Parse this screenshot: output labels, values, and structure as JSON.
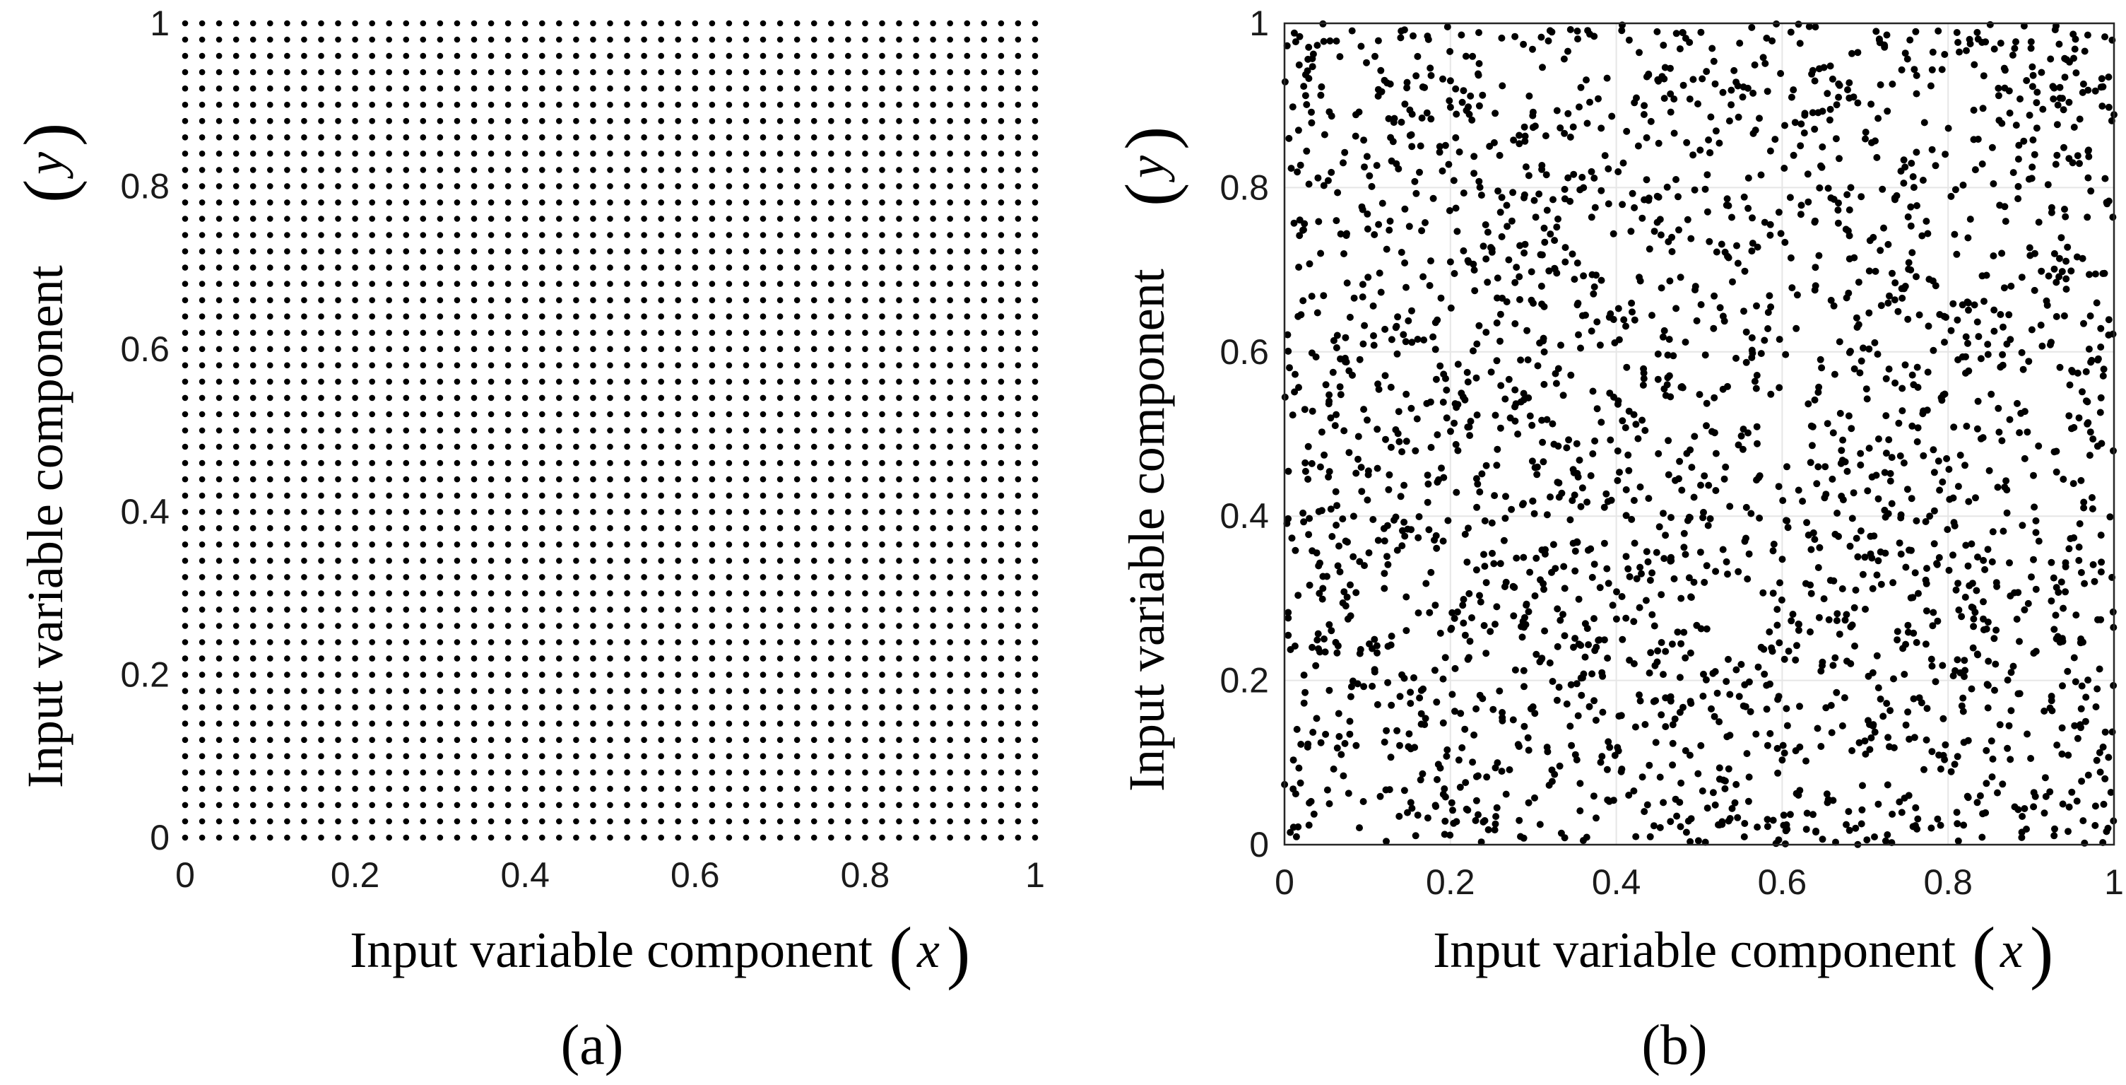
{
  "chart_data": [
    {
      "type": "scatter",
      "panel_label": "(a)",
      "title": "",
      "distribution": "uniform grid",
      "grid_count_per_axis": 51,
      "x_tick_values": [
        0,
        0.2,
        0.4,
        0.6,
        0.8,
        1
      ],
      "y_tick_values": [
        0,
        0.2,
        0.4,
        0.6,
        0.8,
        1
      ],
      "x_tick_labels": [
        "0",
        "0.2",
        "0.4",
        "0.6",
        "0.8",
        "1"
      ],
      "y_tick_labels": [
        "0",
        "0.2",
        "0.4",
        "0.6",
        "0.8",
        "1"
      ],
      "xlim": [
        0,
        1
      ],
      "ylim": [
        0,
        1
      ],
      "xlabel": {
        "text": "Input variable component",
        "variable": "x"
      },
      "ylabel": {
        "text": "Input variable component",
        "variable": "y"
      },
      "grid": false,
      "box": false,
      "marker_color": "#000000"
    },
    {
      "type": "scatter",
      "panel_label": "(b)",
      "title": "",
      "distribution": "uniform random",
      "point_count": 2500,
      "x_tick_values": [
        0,
        0.2,
        0.4,
        0.6,
        0.8,
        1
      ],
      "y_tick_values": [
        0,
        0.2,
        0.4,
        0.6,
        0.8,
        1
      ],
      "x_tick_labels": [
        "0",
        "0.2",
        "0.4",
        "0.6",
        "0.8",
        "1"
      ],
      "y_tick_labels": [
        "0",
        "0.2",
        "0.4",
        "0.6",
        "0.8",
        "1"
      ],
      "xlim": [
        0,
        1
      ],
      "ylim": [
        0,
        1
      ],
      "xlabel": {
        "text": "Input variable component",
        "variable": "x"
      },
      "ylabel": {
        "text": "Input variable component",
        "variable": "y"
      },
      "grid": true,
      "box": true,
      "marker_color": "#000000"
    }
  ]
}
